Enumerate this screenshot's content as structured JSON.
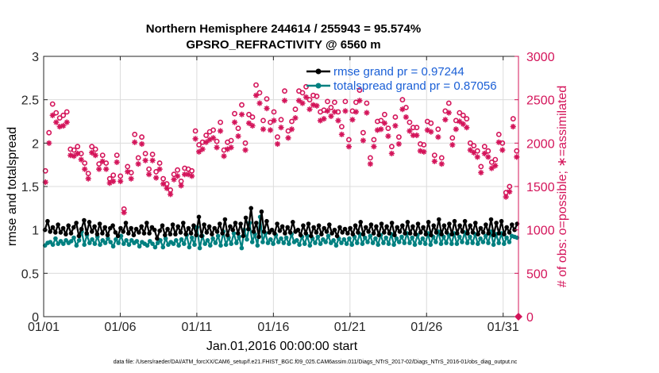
{
  "chart_data": {
    "type": "line",
    "title_line1": "Northern Hemisphere 244614 / 255943 = 95.574%",
    "title_line2": "GPSRO_REFRACTIVITY @ 6560 m",
    "xlabel": "Jan.01,2016 00:00:00 start",
    "ylabel_left": "rmse and totalspread",
    "ylabel_right": "# of obs: o=possible; ∗=assimilated",
    "x_tick_labels": [
      "01/01",
      "01/06",
      "01/11",
      "01/16",
      "01/21",
      "01/26",
      "01/31"
    ],
    "x_tick_days": [
      1,
      6,
      11,
      16,
      21,
      26,
      31
    ],
    "xlim": [
      1,
      32
    ],
    "y_left_ticks": [
      "0",
      "0.5",
      "1",
      "1.5",
      "2",
      "2.5",
      "3"
    ],
    "y_left_lim": [
      0,
      3
    ],
    "y_right_ticks": [
      "0",
      "500",
      "1000",
      "1500",
      "2000",
      "2500",
      "3000"
    ],
    "y_right_lim": [
      0,
      3000
    ],
    "legend": [
      "rmse grand pr = 0.97244",
      "totalspread grand pr = 0.87056"
    ],
    "colors": {
      "rmse": "#000000",
      "spread": "#008080",
      "obs": "#d4145a",
      "legend_text": "#1a5fd6"
    },
    "series": [
      {
        "name": "rmse",
        "values": [
          1.0,
          1.1,
          0.98,
          1.03,
          0.97,
          1.06,
          0.97,
          1.02,
          0.95,
          1.05,
          0.96,
          1.03,
          1.08,
          0.93,
          1.01,
          1.11,
          0.96,
          1.09,
          0.98,
          1.04,
          0.95,
          1.07,
          0.96,
          1.03,
          0.94,
          1.02,
          1.05,
          0.97,
          0.93,
          1.02,
          0.98,
          1.08,
          0.96,
          1.02,
          0.94,
          1.01,
          0.97,
          1.04,
          0.96,
          1.08,
          0.96,
          1.03,
          1.0,
          0.9,
          0.99,
          1.05,
          0.94,
          1.01,
          0.95,
          1.06,
          0.95,
          1.04,
          0.97,
          1.08,
          0.95,
          1.02,
          0.96,
          1.05,
          0.94,
          1.15,
          0.93,
          1.06,
          0.97,
          1.04,
          0.95,
          1.02,
          0.98,
          1.07,
          0.96,
          1.12,
          0.94,
          1.04,
          1.0,
          1.08,
          0.96,
          1.07,
          0.93,
          1.14,
          1.01,
          1.25,
          0.98,
          1.08,
          0.92,
          1.21,
          0.98,
          1.1,
          0.97,
          1.0,
          0.96,
          1.07,
          0.99,
          1.04,
          0.96,
          1.03,
          0.97,
          1.09,
          0.98,
          1.0,
          0.94,
          1.05,
          0.96,
          1.07,
          0.93,
          1.03,
          0.97,
          1.05,
          0.95,
          1.02,
          0.98,
          1.06,
          0.96,
          1.0,
          0.93,
          1.03,
          0.97,
          1.01,
          0.96,
          1.02,
          0.95,
          1.05,
          0.97,
          1.09,
          0.95,
          1.03,
          0.98,
          1.06,
          0.96,
          1.04,
          0.94,
          1.07,
          0.97,
          1.04,
          0.96,
          1.08,
          0.94,
          1.03,
          0.98,
          1.05,
          0.96,
          1.09,
          0.96,
          1.04,
          0.95,
          1.07,
          0.97,
          1.03,
          0.95,
          1.09,
          0.94,
          1.05,
          0.97,
          1.12,
          0.95,
          1.05,
          0.97,
          1.07,
          0.95,
          1.1,
          0.96,
          1.05,
          0.98,
          1.1,
          0.96,
          1.05,
          0.97,
          1.08,
          0.95,
          1.02,
          0.97,
          1.06,
          0.96,
          1.12,
          0.94,
          1.08,
          0.96,
          1.1,
          0.95,
          1.03,
          0.97,
          1.06,
          1.0,
          1.07
        ]
      },
      {
        "name": "totalspread",
        "values": [
          0.82,
          0.85,
          0.86,
          0.83,
          0.9,
          0.84,
          0.87,
          0.84,
          0.88,
          0.85,
          0.87,
          0.91,
          0.82,
          0.88,
          0.98,
          0.83,
          0.94,
          0.85,
          0.89,
          0.84,
          0.92,
          0.83,
          0.88,
          0.85,
          0.9,
          0.86,
          0.81,
          0.89,
          0.85,
          0.93,
          0.84,
          0.88,
          0.83,
          0.88,
          0.85,
          0.87,
          0.81,
          0.86,
          0.84,
          0.82,
          0.87,
          0.84,
          0.8,
          0.85,
          0.88,
          0.8,
          0.9,
          0.83,
          0.86,
          0.84,
          0.88,
          0.82,
          0.89,
          0.84,
          0.94,
          0.8,
          0.91,
          0.83,
          1.03,
          0.79,
          0.93,
          0.84,
          0.88,
          0.82,
          0.9,
          0.85,
          0.93,
          0.82,
          0.98,
          0.83,
          0.91,
          0.84,
          0.96,
          0.85,
          0.92,
          0.79,
          1.0,
          0.89,
          1.08,
          0.86,
          0.95,
          0.82,
          1.15,
          0.86,
          0.96,
          0.85,
          0.89,
          0.84,
          0.94,
          0.86,
          0.9,
          0.85,
          0.91,
          0.84,
          0.95,
          0.86,
          0.88,
          0.83,
          0.92,
          0.84,
          0.93,
          0.82,
          0.9,
          0.85,
          0.92,
          0.84,
          0.89,
          0.86,
          0.93,
          0.85,
          0.88,
          0.82,
          0.9,
          0.85,
          0.89,
          0.84,
          0.9,
          0.83,
          0.92,
          0.85,
          0.95,
          0.84,
          0.91,
          0.86,
          0.93,
          0.85,
          0.9,
          0.83,
          0.94,
          0.85,
          0.91,
          0.84,
          0.95,
          0.83,
          0.9,
          0.86,
          0.92,
          0.85,
          0.96,
          0.85,
          0.91,
          0.83,
          0.94,
          0.85,
          0.9,
          0.84,
          0.96,
          0.83,
          0.92,
          0.86,
          0.98,
          0.84,
          0.92,
          0.85,
          0.94,
          0.84,
          0.96,
          0.84,
          0.92,
          0.86,
          0.97,
          0.85,
          0.92,
          0.85,
          0.95,
          0.84,
          0.9,
          0.86,
          0.93,
          0.85,
          0.98,
          0.83,
          0.95,
          0.85,
          0.96,
          0.84,
          0.91,
          0.86,
          0.93,
          0.92,
          0.91
        ]
      },
      {
        "name": "obs_possible",
        "values": [
          1680,
          2120,
          2450,
          2350,
          2290,
          2320,
          2360,
          1930,
          1920,
          1960,
          1880,
          1770,
          1650,
          1960,
          1930,
          1760,
          1860,
          1770,
          1590,
          1630,
          1860,
          1620,
          1240,
          1730,
          1660,
          2100,
          1830,
          2070,
          1880,
          1700,
          1870,
          1670,
          1770,
          1590,
          1530,
          1460,
          1640,
          1690,
          1560,
          1710,
          1700,
          1680,
          2140,
          1980,
          2010,
          2090,
          2130,
          2150,
          2020,
          2240,
          1920,
          2010,
          2030,
          2340,
          2170,
          2440,
          2000,
          2330,
          2300,
          2670,
          2580,
          2260,
          2510,
          2240,
          2360,
          2070,
          2270,
          2600,
          2140,
          2250,
          2390,
          2600,
          2580,
          2650,
          2500,
          2550,
          2540,
          2360,
          2380,
          2480,
          2410,
          2470,
          2360,
          2190,
          2480,
          2040,
          2370,
          2470,
          2610,
          2120,
          2460,
          1830,
          2040,
          2250,
          2260,
          2330,
          2170,
          1960,
          2300,
          2070,
          2500,
          2410,
          2240,
          2180,
          2180,
          1990,
          1980,
          2250,
          2230,
          1860,
          2160,
          1830,
          2370,
          2460,
          2060,
          2260,
          2350,
          2320,
          2280,
          2000,
          1970,
          1910,
          1730,
          1960,
          1910,
          1780,
          1810,
          2100,
          2000,
          1430,
          1500,
          2280,
          1910
        ]
      },
      {
        "name": "obs_assimilated",
        "values": [
          1550,
          2000,
          2320,
          2240,
          2190,
          2200,
          2240,
          1860,
          1850,
          1880,
          1810,
          1700,
          1590,
          1890,
          1860,
          1700,
          1790,
          1700,
          1540,
          1560,
          1780,
          1560,
          1200,
          1670,
          1590,
          2010,
          1760,
          1990,
          1800,
          1640,
          1800,
          1600,
          1700,
          1530,
          1480,
          1410,
          1580,
          1620,
          1510,
          1640,
          1640,
          1620,
          2050,
          1900,
          1930,
          2010,
          2040,
          2060,
          1950,
          2140,
          1850,
          1930,
          1950,
          2240,
          2080,
          2330,
          1920,
          2230,
          2200,
          2550,
          2460,
          2160,
          2400,
          2150,
          2260,
          1990,
          2180,
          2490,
          2060,
          2160,
          2290,
          2490,
          2460,
          2530,
          2390,
          2440,
          2430,
          2260,
          2280,
          2370,
          2310,
          2360,
          2260,
          2100,
          2370,
          1960,
          2270,
          2360,
          2490,
          2030,
          2350,
          1760,
          1960,
          2150,
          2160,
          2230,
          2080,
          1880,
          2200,
          1990,
          2390,
          2300,
          2140,
          2090,
          2090,
          1910,
          1900,
          2150,
          2130,
          1790,
          2070,
          1760,
          2270,
          2350,
          1980,
          2160,
          2250,
          2220,
          2180,
          1920,
          1890,
          1840,
          1660,
          1880,
          1840,
          1710,
          1740,
          2010,
          1920,
          1380,
          1440,
          2190,
          1840
        ]
      }
    ]
  },
  "footer": "data file: /Users/raeder/DAI/ATM_forcXX/CAM6_setup/f.e21.FHIST_BGC.f09_025.CAM6assim.011/Diags_NTrS_2017-02/Diags_NTrS_2016-01/obs_diag_output.nc"
}
